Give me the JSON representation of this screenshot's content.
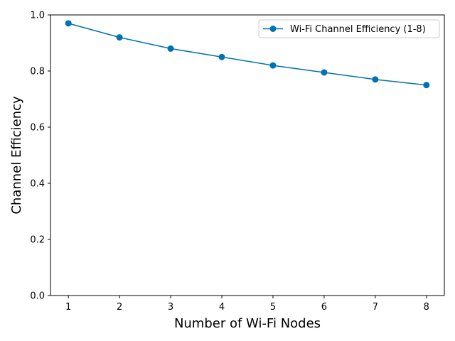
{
  "chart_data": {
    "type": "line",
    "xlabel": "Number of Wi-Fi Nodes",
    "ylabel": "Channel Efficiency",
    "xlim": [
      0.65,
      8.35
    ],
    "ylim": [
      0.0,
      1.0
    ],
    "x_ticks": [
      1,
      2,
      3,
      4,
      5,
      6,
      7,
      8
    ],
    "y_ticks": [
      0.0,
      0.2,
      0.4,
      0.6,
      0.8,
      1.0
    ],
    "y_tick_labels": [
      "0.0",
      "0.2",
      "0.4",
      "0.6",
      "0.8",
      "1.0"
    ],
    "grid": false,
    "legend_position": "top-right",
    "series": [
      {
        "name": "Wi-Fi Channel Efficiency (1-8)",
        "color": "#0072b2",
        "marker": "circle",
        "x": [
          1,
          2,
          3,
          4,
          5,
          6,
          7,
          8
        ],
        "y": [
          0.97,
          0.92,
          0.88,
          0.85,
          0.82,
          0.795,
          0.77,
          0.75
        ]
      }
    ]
  }
}
